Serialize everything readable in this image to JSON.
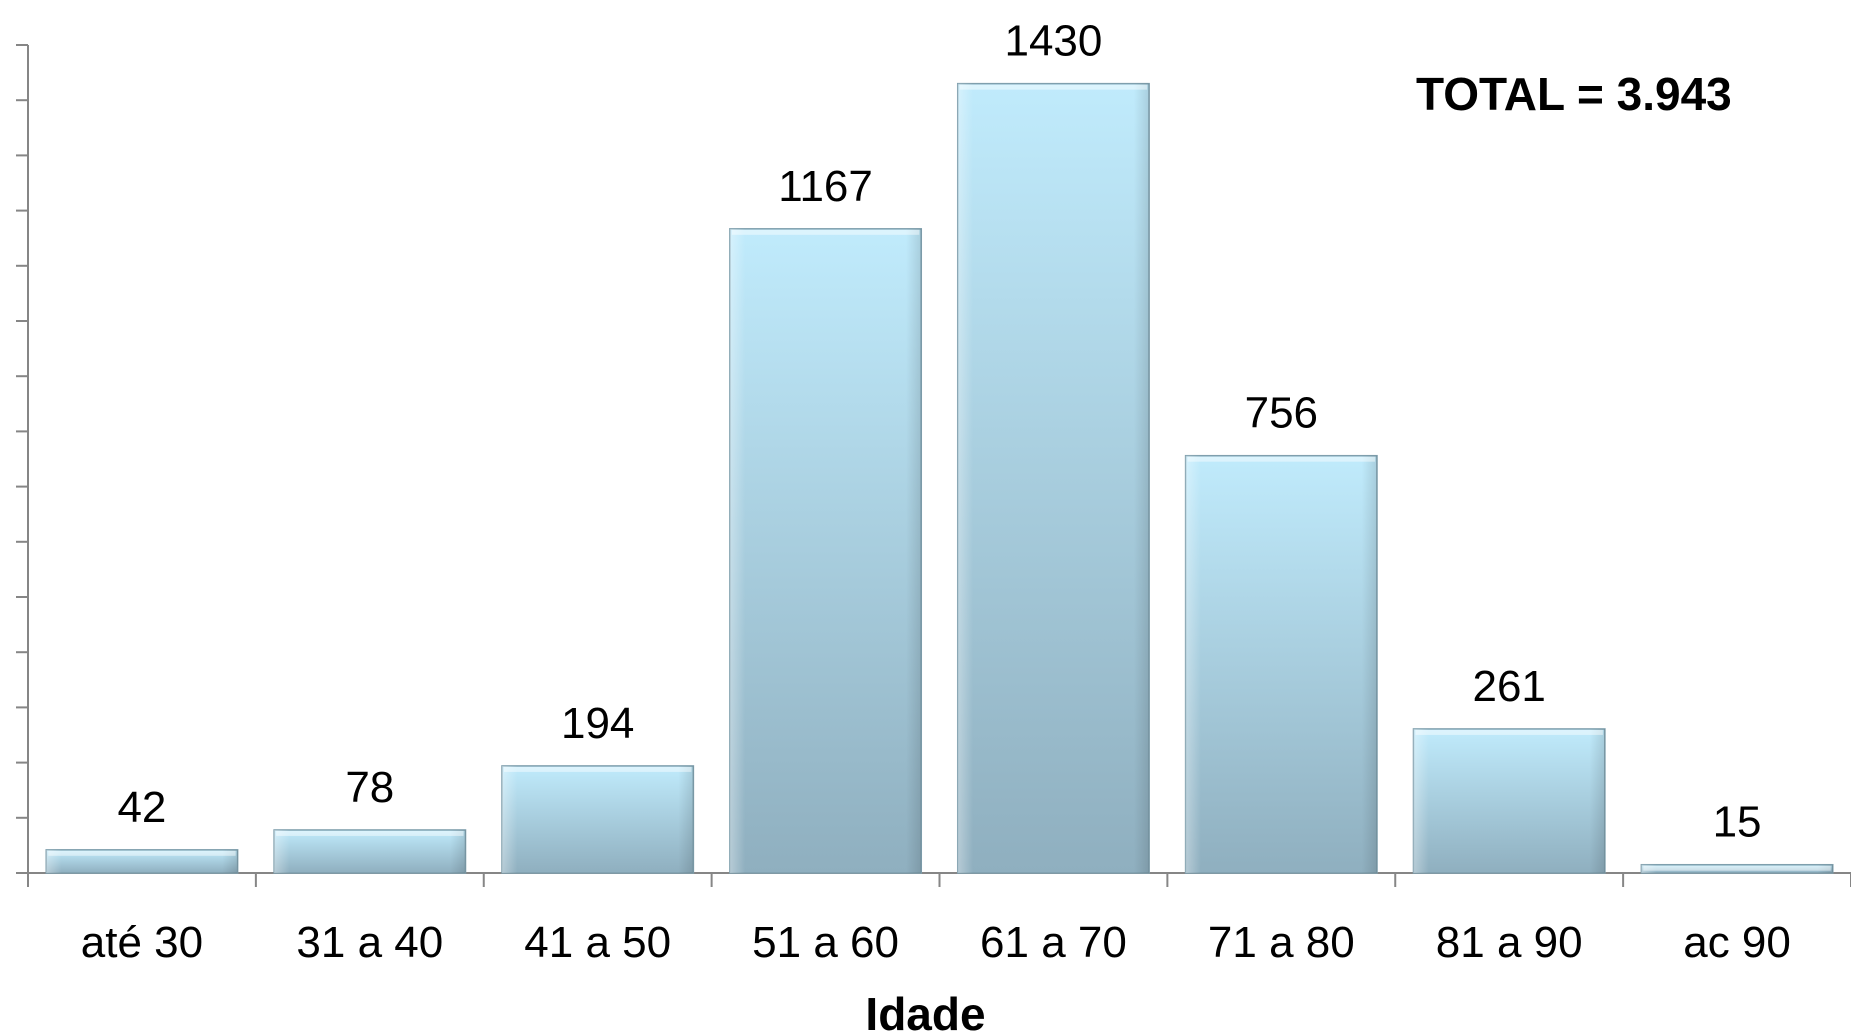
{
  "chart_data": {
    "type": "bar",
    "categories": [
      "até 30",
      "31 a 40",
      "41 a 50",
      "51 a 60",
      "61 a 70",
      "71 a 80",
      "81 a 90",
      "ac 90"
    ],
    "values": [
      42,
      78,
      194,
      1167,
      1430,
      756,
      261,
      15
    ],
    "title": "",
    "xlabel": "Idade",
    "ylabel": "",
    "ylim": [
      0,
      1500
    ],
    "grid": false,
    "legend": "none",
    "annotation": "TOTAL = 3.943",
    "bar_color_top": "#c0ebfc",
    "bar_color_bottom": "#8fafbf"
  }
}
